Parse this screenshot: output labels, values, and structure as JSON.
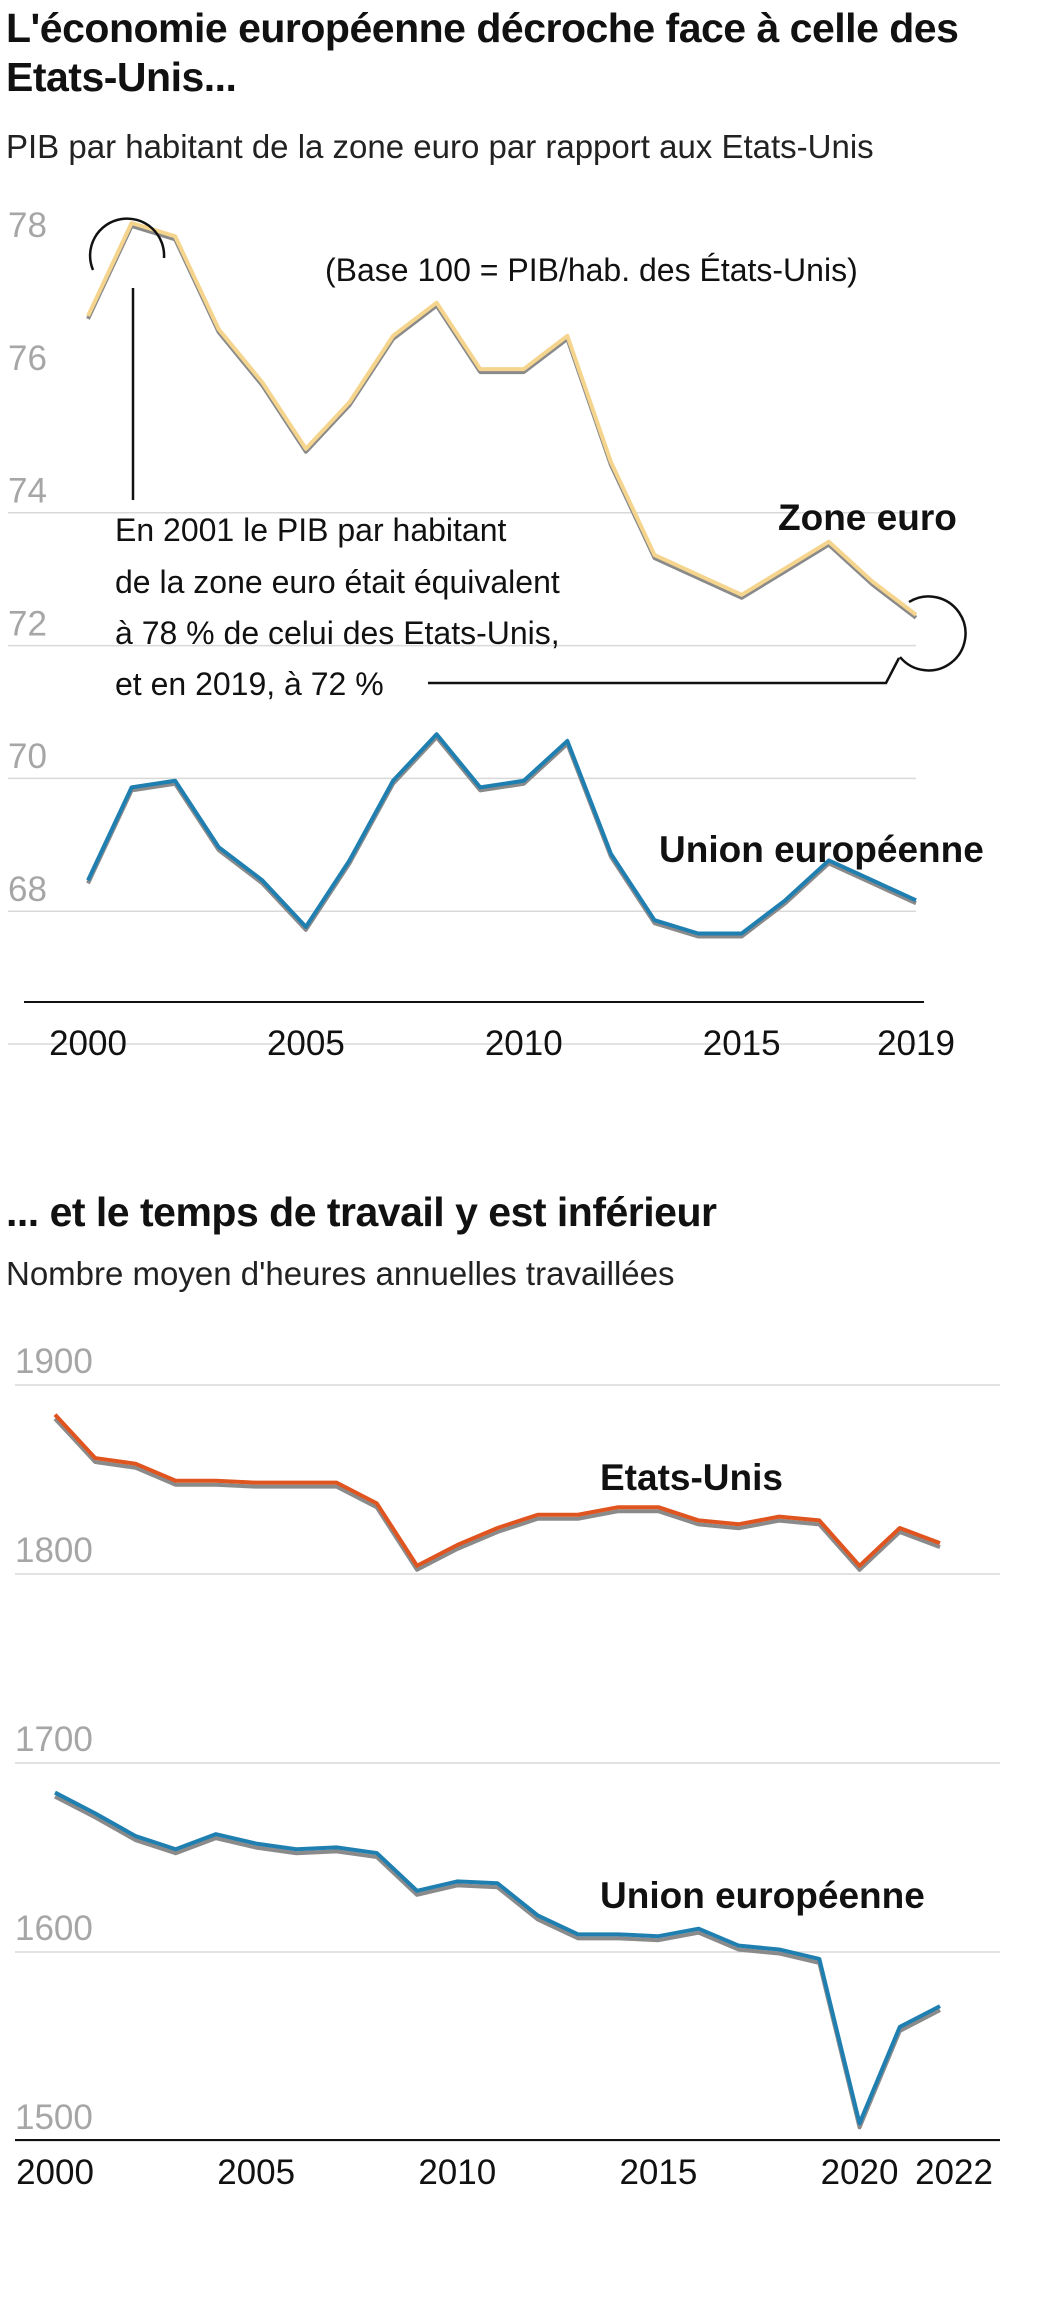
{
  "colors": {
    "zone_euro": "#f5d58e",
    "ue": "#1f7fb0",
    "us": "#e0551f",
    "shadow": "#8a8a8a",
    "grid": "#d9d9d9"
  },
  "chart1": {
    "title": "L'économie européenne décroche face à celle des Etats-Unis...",
    "subtitle": "PIB par habitant de la zone euro par rapport aux Etats-Unis",
    "base_note": "(Base 100 = PIB/hab. des États-Unis)",
    "annotation_lines": [
      "En 2001 le PIB par habitant",
      "de la zone euro était équivalent",
      "à 78 % de celui des Etats-Unis,",
      "et en 2019, à 72 %"
    ],
    "y_tick_labels": [
      "78",
      "76",
      "74",
      "72",
      "70",
      "68"
    ],
    "x_tick_labels": [
      "2000",
      "2005",
      "2010",
      "2015",
      "2019"
    ]
  },
  "chart2": {
    "title": "... et le temps de travail y est inférieur",
    "subtitle": "Nombre moyen d'heures annuelles travaillées",
    "y_tick_labels": [
      "1900",
      "1800",
      "1700",
      "1600",
      "1500"
    ],
    "x_tick_labels": [
      "2000",
      "2005",
      "2010",
      "2015",
      "2020",
      "2022"
    ]
  },
  "chart_data": [
    {
      "type": "line",
      "title": "L'économie européenne décroche face à celle des Etats-Unis...",
      "subtitle": "PIB par habitant de la zone euro par rapport aux Etats-Unis",
      "ylim": [
        67,
        79
      ],
      "yticks": [
        68,
        70,
        72,
        74,
        76,
        78
      ],
      "x": [
        2000,
        2001,
        2002,
        2003,
        2004,
        2005,
        2006,
        2007,
        2008,
        2009,
        2010,
        2011,
        2012,
        2013,
        2014,
        2015,
        2016,
        2017,
        2018,
        2019
      ],
      "series": [
        {
          "name": "Zone euro",
          "values": [
            76.6,
            78.0,
            77.8,
            76.4,
            75.6,
            74.6,
            75.3,
            76.3,
            76.8,
            75.8,
            75.8,
            76.3,
            74.4,
            73.0,
            72.7,
            72.4,
            72.8,
            73.2,
            72.6,
            72.1
          ]
        },
        {
          "name": "Union européenne",
          "values": [
            68.1,
            69.5,
            69.6,
            68.6,
            68.1,
            67.4,
            68.4,
            69.6,
            70.3,
            69.5,
            69.6,
            70.2,
            68.5,
            67.5,
            67.3,
            67.3,
            67.8,
            68.4,
            68.1,
            67.8
          ]
        }
      ]
    },
    {
      "type": "line",
      "title": "... et le temps de travail y est inférieur",
      "subtitle": "Nombre moyen d'heures annuelles travaillées",
      "ylim": [
        1500,
        1900
      ],
      "yticks": [
        1500,
        1600,
        1700,
        1800,
        1900
      ],
      "x": [
        2000,
        2001,
        2002,
        2003,
        2004,
        2005,
        2006,
        2007,
        2008,
        2009,
        2010,
        2011,
        2012,
        2013,
        2014,
        2015,
        2016,
        2017,
        2018,
        2019,
        2020,
        2021,
        2022
      ],
      "series": [
        {
          "name": "Etats-Unis",
          "values": [
            1878,
            1855,
            1852,
            1843,
            1843,
            1842,
            1842,
            1842,
            1831,
            1798,
            1809,
            1818,
            1825,
            1825,
            1829,
            1829,
            1822,
            1820,
            1824,
            1822,
            1798,
            1818,
            1810
          ]
        },
        {
          "name": "Union européenne",
          "values": [
            1678,
            1667,
            1655,
            1648,
            1656,
            1651,
            1648,
            1649,
            1646,
            1626,
            1631,
            1630,
            1613,
            1603,
            1603,
            1602,
            1606,
            1597,
            1595,
            1590,
            1503,
            1554,
            1565
          ]
        }
      ]
    }
  ]
}
